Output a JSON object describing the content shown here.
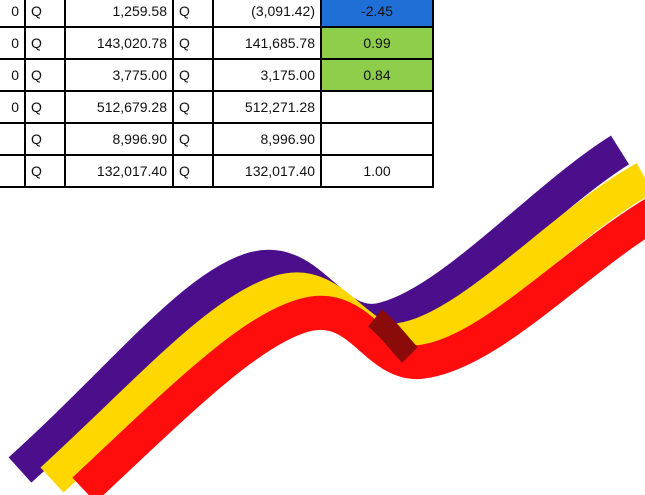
{
  "table": {
    "rows": [
      {
        "left": "0",
        "q1": "Q",
        "a": "1,259.58",
        "q2": "Q",
        "b": "(3,091.42)",
        "ratio": "-2.45",
        "fill": "#1f6fd6"
      },
      {
        "left": "0",
        "q1": "Q",
        "a": "143,020.78",
        "q2": "Q",
        "b": "141,685.78",
        "ratio": "0.99",
        "fill": "#8fce4a"
      },
      {
        "left": "0",
        "q1": "Q",
        "a": "3,775.00",
        "q2": "Q",
        "b": "3,175.00",
        "ratio": "0.84",
        "fill": "#8fce4a"
      },
      {
        "left": "0",
        "q1": "Q",
        "a": "512,679.28",
        "q2": "Q",
        "b": "512,271.28"
      },
      {
        "q1": "Q",
        "a": "8,996.90",
        "q2": "Q",
        "b": "8,996.90"
      },
      {
        "q1": "Q",
        "a": "132,017.40",
        "q2": "Q",
        "b": "132,017.40",
        "ratio": "1.00"
      }
    ]
  }
}
